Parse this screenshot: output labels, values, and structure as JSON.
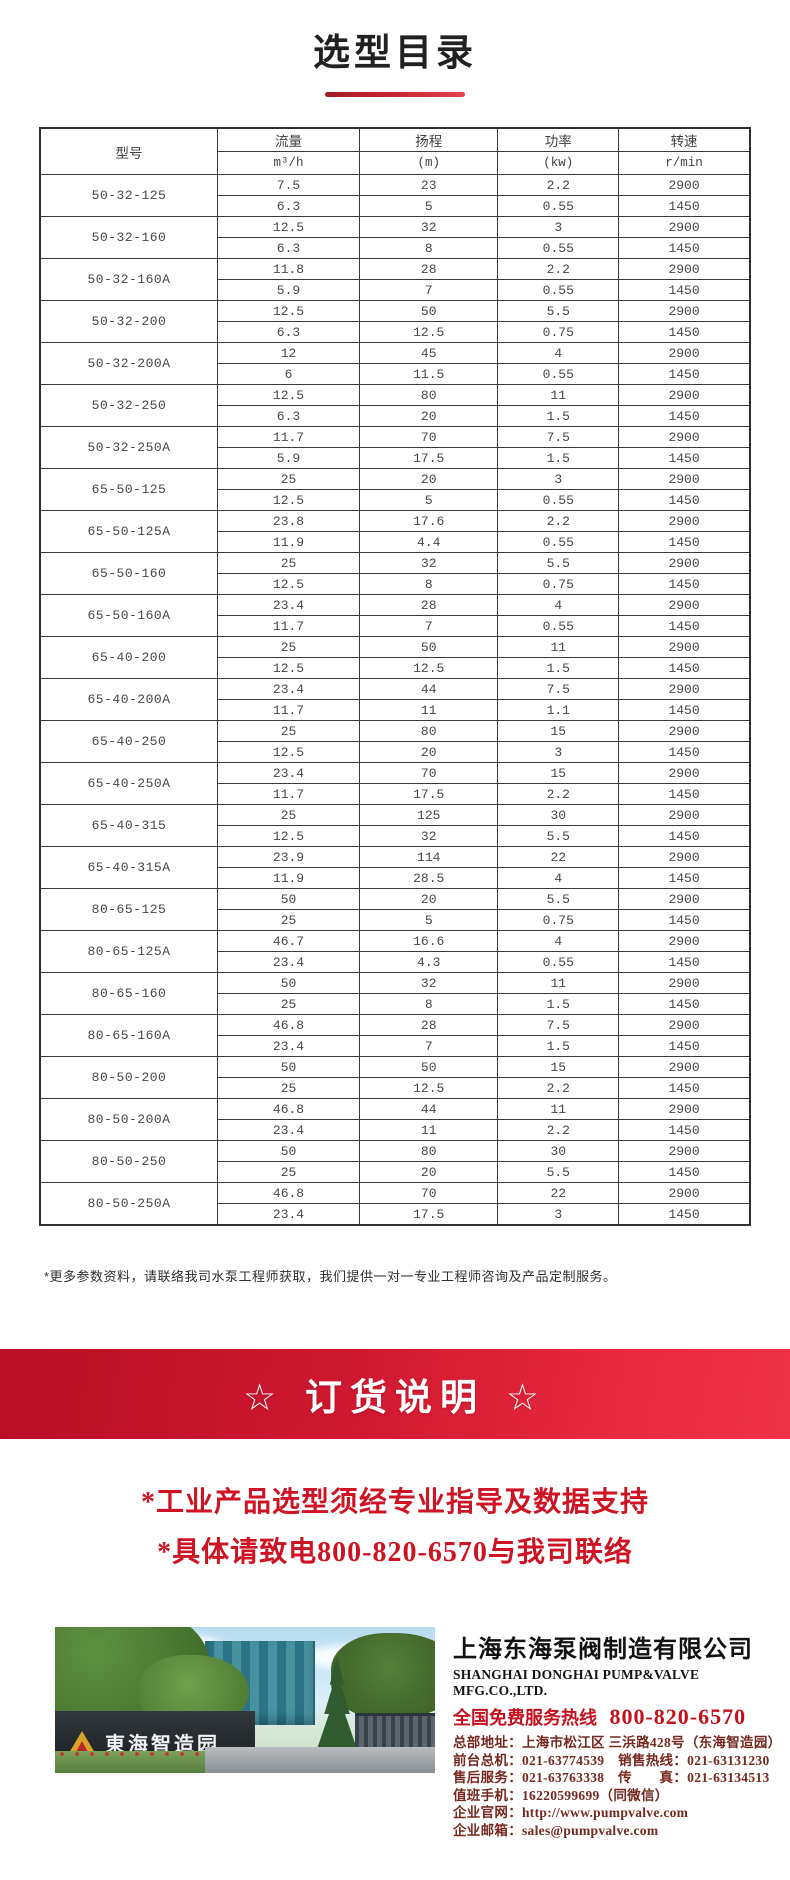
{
  "page": {
    "title": "选型目录"
  },
  "colors": {
    "accent_red": "#ce1424",
    "banner_red": "#d01a30",
    "contact_maroon": "#74281f"
  },
  "table": {
    "header": {
      "model": "型号",
      "flow": "流量",
      "flow_unit": "m³/h",
      "head": "扬程",
      "head_unit": "(m)",
      "power": "功率",
      "power_unit": "(kw)",
      "speed": "转速",
      "speed_unit": "r/min"
    },
    "models": [
      {
        "model": "50-32-125",
        "rows": [
          [
            "7.5",
            "23",
            "2.2",
            "2900"
          ],
          [
            "6.3",
            "5",
            "0.55",
            "1450"
          ]
        ]
      },
      {
        "model": "50-32-160",
        "rows": [
          [
            "12.5",
            "32",
            "3",
            "2900"
          ],
          [
            "6.3",
            "8",
            "0.55",
            "1450"
          ]
        ]
      },
      {
        "model": "50-32-160A",
        "rows": [
          [
            "11.8",
            "28",
            "2.2",
            "2900"
          ],
          [
            "5.9",
            "7",
            "0.55",
            "1450"
          ]
        ]
      },
      {
        "model": "50-32-200",
        "rows": [
          [
            "12.5",
            "50",
            "5.5",
            "2900"
          ],
          [
            "6.3",
            "12.5",
            "0.75",
            "1450"
          ]
        ]
      },
      {
        "model": "50-32-200A",
        "rows": [
          [
            "12",
            "45",
            "4",
            "2900"
          ],
          [
            "6",
            "11.5",
            "0.55",
            "1450"
          ]
        ]
      },
      {
        "model": "50-32-250",
        "rows": [
          [
            "12.5",
            "80",
            "11",
            "2900"
          ],
          [
            "6.3",
            "20",
            "1.5",
            "1450"
          ]
        ]
      },
      {
        "model": "50-32-250A",
        "rows": [
          [
            "11.7",
            "70",
            "7.5",
            "2900"
          ],
          [
            "5.9",
            "17.5",
            "1.5",
            "1450"
          ]
        ]
      },
      {
        "model": "65-50-125",
        "rows": [
          [
            "25",
            "20",
            "3",
            "2900"
          ],
          [
            "12.5",
            "5",
            "0.55",
            "1450"
          ]
        ]
      },
      {
        "model": "65-50-125A",
        "rows": [
          [
            "23.8",
            "17.6",
            "2.2",
            "2900"
          ],
          [
            "11.9",
            "4.4",
            "0.55",
            "1450"
          ]
        ]
      },
      {
        "model": "65-50-160",
        "rows": [
          [
            "25",
            "32",
            "5.5",
            "2900"
          ],
          [
            "12.5",
            "8",
            "0.75",
            "1450"
          ]
        ]
      },
      {
        "model": "65-50-160A",
        "rows": [
          [
            "23.4",
            "28",
            "4",
            "2900"
          ],
          [
            "11.7",
            "7",
            "0.55",
            "1450"
          ]
        ]
      },
      {
        "model": "65-40-200",
        "rows": [
          [
            "25",
            "50",
            "11",
            "2900"
          ],
          [
            "12.5",
            "12.5",
            "1.5",
            "1450"
          ]
        ]
      },
      {
        "model": "65-40-200A",
        "rows": [
          [
            "23.4",
            "44",
            "7.5",
            "2900"
          ],
          [
            "11.7",
            "11",
            "1.1",
            "1450"
          ]
        ]
      },
      {
        "model": "65-40-250",
        "rows": [
          [
            "25",
            "80",
            "15",
            "2900"
          ],
          [
            "12.5",
            "20",
            "3",
            "1450"
          ]
        ]
      },
      {
        "model": "65-40-250A",
        "rows": [
          [
            "23.4",
            "70",
            "15",
            "2900"
          ],
          [
            "11.7",
            "17.5",
            "2.2",
            "1450"
          ]
        ]
      },
      {
        "model": "65-40-315",
        "rows": [
          [
            "25",
            "125",
            "30",
            "2900"
          ],
          [
            "12.5",
            "32",
            "5.5",
            "1450"
          ]
        ]
      },
      {
        "model": "65-40-315A",
        "rows": [
          [
            "23.9",
            "114",
            "22",
            "2900"
          ],
          [
            "11.9",
            "28.5",
            "4",
            "1450"
          ]
        ]
      },
      {
        "model": "80-65-125",
        "rows": [
          [
            "50",
            "20",
            "5.5",
            "2900"
          ],
          [
            "25",
            "5",
            "0.75",
            "1450"
          ]
        ]
      },
      {
        "model": "80-65-125A",
        "rows": [
          [
            "46.7",
            "16.6",
            "4",
            "2900"
          ],
          [
            "23.4",
            "4.3",
            "0.55",
            "1450"
          ]
        ]
      },
      {
        "model": "80-65-160",
        "rows": [
          [
            "50",
            "32",
            "11",
            "2900"
          ],
          [
            "25",
            "8",
            "1.5",
            "1450"
          ]
        ]
      },
      {
        "model": "80-65-160A",
        "rows": [
          [
            "46.8",
            "28",
            "7.5",
            "2900"
          ],
          [
            "23.4",
            "7",
            "1.5",
            "1450"
          ]
        ]
      },
      {
        "model": "80-50-200",
        "rows": [
          [
            "50",
            "50",
            "15",
            "2900"
          ],
          [
            "25",
            "12.5",
            "2.2",
            "1450"
          ]
        ]
      },
      {
        "model": "80-50-200A",
        "rows": [
          [
            "46.8",
            "44",
            "11",
            "2900"
          ],
          [
            "23.4",
            "11",
            "2.2",
            "1450"
          ]
        ]
      },
      {
        "model": "80-50-250",
        "rows": [
          [
            "50",
            "80",
            "30",
            "2900"
          ],
          [
            "25",
            "20",
            "5.5",
            "1450"
          ]
        ]
      },
      {
        "model": "80-50-250A",
        "rows": [
          [
            "46.8",
            "70",
            "22",
            "2900"
          ],
          [
            "23.4",
            "17.5",
            "3",
            "1450"
          ]
        ]
      }
    ]
  },
  "note": "*更多参数资料，请联络我司水泵工程师获取，我们提供一对一专业工程师咨询及产品定制服务。",
  "banner": {
    "text": "☆ 订货说明 ☆"
  },
  "notices": [
    "*工业产品选型须经专业指导及数据支持",
    "*具体请致电800-820-6570与我司联络"
  ],
  "footer": {
    "sign_text": "東海智造园",
    "company_cn": "上海东海泵阀制造有限公司",
    "company_en": "SHANGHAI DONGHAI PUMP&VALVE MFG.CO.,LTD.",
    "hotline_label": "全国免费服务热线",
    "hotline_number": "800-820-6570",
    "details": [
      "总部地址：上海市松江区 三浜路428号（东海智造园）",
      "前台总机：021-63774539　销售热线：021-63131230",
      "售后服务：021-63763338　传　　真：021-63134513",
      "值班手机：16220599699（同微信）",
      "企业官网：http://www.pumpvalve.com",
      "企业邮箱：sales@pumpvalve.com"
    ]
  }
}
